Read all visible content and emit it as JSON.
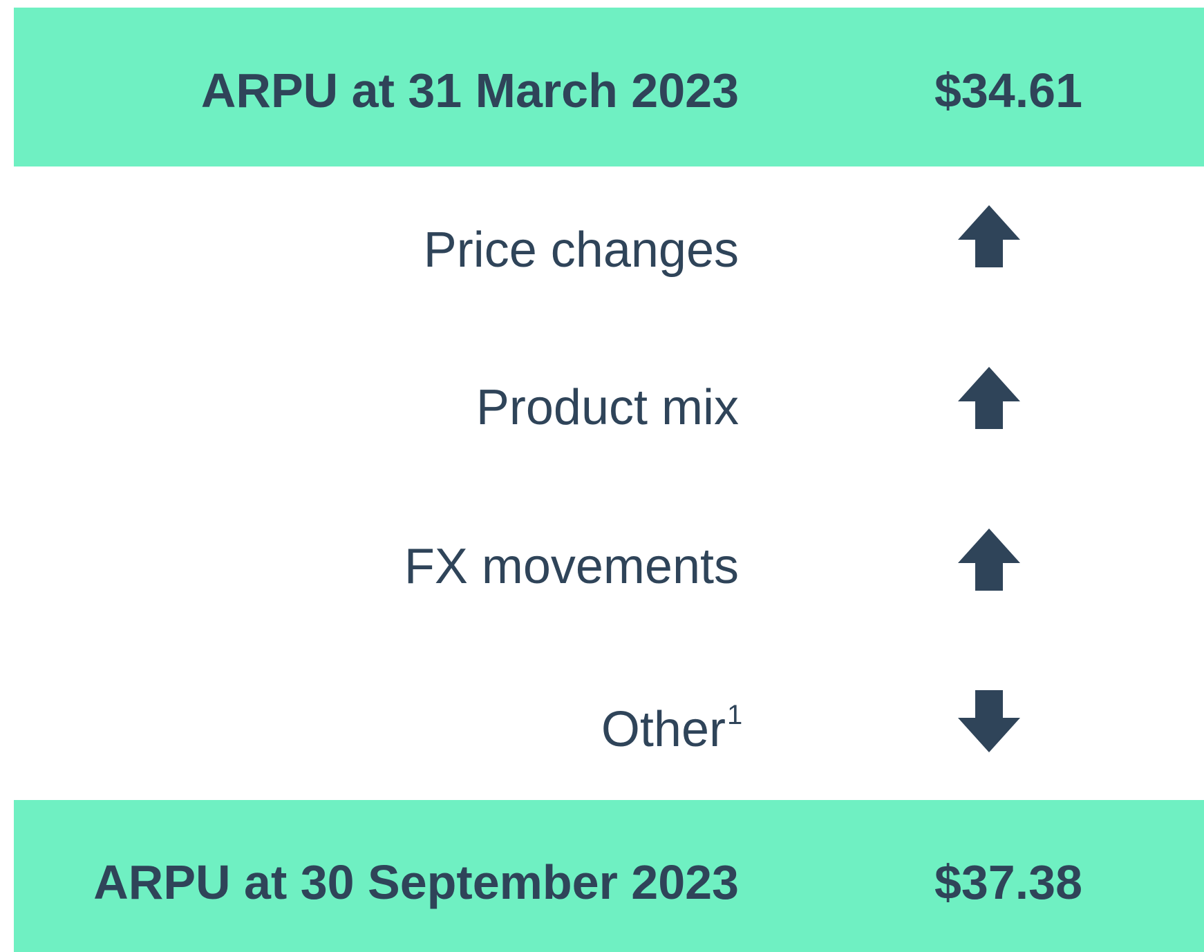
{
  "start": {
    "label": "ARPU at 31 March 2023",
    "value": "$34.61"
  },
  "drivers": [
    {
      "label": "Price changes"
    },
    {
      "label": "Product mix"
    },
    {
      "label": "FX movements"
    },
    {
      "label": "Other",
      "footnote": "1"
    }
  ],
  "end": {
    "label": "ARPU at 30 September 2023",
    "value": "$37.38"
  }
}
